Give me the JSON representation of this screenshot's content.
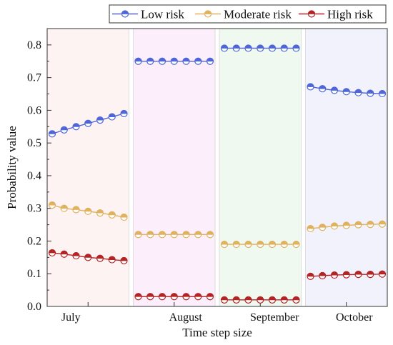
{
  "chart_data": {
    "type": "line",
    "xlabel": "Time step size",
    "ylabel": "Probability value",
    "ylim": [
      0.0,
      0.85
    ],
    "yticks": [
      0.0,
      0.1,
      0.2,
      0.3,
      0.4,
      0.5,
      0.6,
      0.7,
      0.8
    ],
    "ytick_labels": [
      "0.0",
      "0.1",
      "0.2",
      "0.3",
      "0.4",
      "0.5",
      "0.6",
      "0.7",
      "0.8"
    ],
    "legend_position": "top",
    "grid": false,
    "panels": [
      {
        "name": "July",
        "bg": "#fdf3f3"
      },
      {
        "name": "August",
        "bg": "#fceefa"
      },
      {
        "name": "September",
        "bg": "#f0f9ef"
      },
      {
        "name": "October",
        "bg": "#f1f2fc"
      }
    ],
    "series": [
      {
        "name": "Low risk",
        "color": "#4e66d8",
        "panels": [
          [
            0.528,
            0.54,
            0.55,
            0.56,
            0.57,
            0.58,
            0.59
          ],
          [
            0.75,
            0.75,
            0.75,
            0.75,
            0.75,
            0.75,
            0.75
          ],
          [
            0.79,
            0.79,
            0.79,
            0.79,
            0.79,
            0.79,
            0.79
          ],
          [
            0.672,
            0.666,
            0.661,
            0.657,
            0.654,
            0.652,
            0.651
          ]
        ]
      },
      {
        "name": "Moderate risk",
        "color": "#e0b15e",
        "panels": [
          [
            0.31,
            0.3,
            0.296,
            0.291,
            0.286,
            0.28,
            0.273
          ],
          [
            0.22,
            0.22,
            0.22,
            0.22,
            0.22,
            0.22,
            0.22
          ],
          [
            0.19,
            0.19,
            0.19,
            0.19,
            0.19,
            0.19,
            0.19
          ],
          [
            0.238,
            0.242,
            0.246,
            0.248,
            0.25,
            0.251,
            0.252
          ]
        ]
      },
      {
        "name": "High risk",
        "color": "#b52424",
        "panels": [
          [
            0.164,
            0.16,
            0.155,
            0.15,
            0.147,
            0.143,
            0.14
          ],
          [
            0.03,
            0.03,
            0.03,
            0.03,
            0.03,
            0.03,
            0.03
          ],
          [
            0.02,
            0.02,
            0.02,
            0.02,
            0.02,
            0.02,
            0.02
          ],
          [
            0.092,
            0.094,
            0.096,
            0.097,
            0.098,
            0.098,
            0.099
          ]
        ]
      }
    ]
  }
}
